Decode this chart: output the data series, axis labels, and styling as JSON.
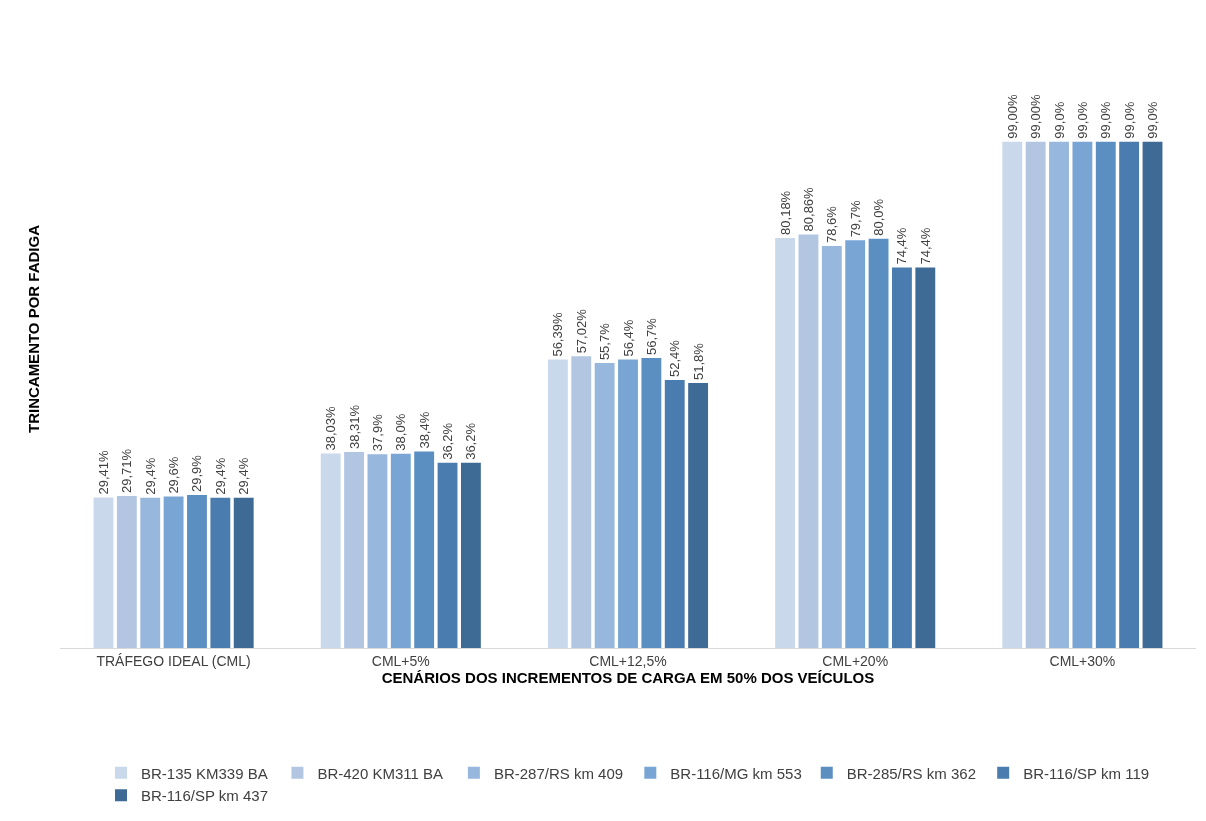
{
  "chart_data": {
    "type": "bar",
    "xlabel": "CENÁRIOS DOS INCREMENTOS DE CARGA EM 50% DOS VEÍCULOS",
    "ylabel": "TRINCAMENTO POR FADIGA",
    "categories": [
      "TRÁFEGO IDEAL (CML)",
      "CML+5%",
      "CML+12,5%",
      "CML+20%",
      "CML+30%"
    ],
    "series": [
      {
        "name": "BR-135 KM339 BA",
        "color": "#c9d8eb",
        "values": [
          29.41,
          38.03,
          56.39,
          80.18,
          99.0
        ],
        "value_labels": [
          "29,41%",
          "38,03%",
          "56,39%",
          "80,18%",
          "99,00%"
        ]
      },
      {
        "name": "BR-420 KM311 BA",
        "color": "#b2c6e2",
        "values": [
          29.71,
          38.31,
          57.02,
          80.86,
          99.0
        ],
        "value_labels": [
          "29,71%",
          "38,31%",
          "57,02%",
          "80,86%",
          "99,00%"
        ]
      },
      {
        "name": "BR-287/RS km 409",
        "color": "#98b7dd",
        "values": [
          29.4,
          37.9,
          55.7,
          78.6,
          99.0
        ],
        "value_labels": [
          "29,4%",
          "37,9%",
          "55,7%",
          "78,6%",
          "99,0%"
        ]
      },
      {
        "name": "BR-116/MG km 553",
        "color": "#79a5d4",
        "values": [
          29.6,
          38.0,
          56.4,
          79.7,
          99.0
        ],
        "value_labels": [
          "29,6%",
          "38,0%",
          "56,4%",
          "79,7%",
          "99,0%"
        ]
      },
      {
        "name": "BR-285/RS km 362",
        "color": "#5b8fc2",
        "values": [
          29.9,
          38.4,
          56.7,
          80.0,
          99.0
        ],
        "value_labels": [
          "29,9%",
          "38,4%",
          "56,7%",
          "80,0%",
          "99,0%"
        ]
      },
      {
        "name": "BR-116/SP km 119",
        "color": "#4b7caf",
        "values": [
          29.4,
          36.2,
          52.4,
          74.4,
          99.0
        ],
        "value_labels": [
          "29,4%",
          "36,2%",
          "52,4%",
          "74,4%",
          "99,0%"
        ]
      },
      {
        "name": "BR-116/SP km 437",
        "color": "#3e6a96",
        "values": [
          29.4,
          36.2,
          51.8,
          74.4,
          99.0
        ],
        "value_labels": [
          "29,4%",
          "36,2%",
          "51,8%",
          "74,4%",
          "99,0%"
        ]
      }
    ],
    "legend": "bottom"
  }
}
